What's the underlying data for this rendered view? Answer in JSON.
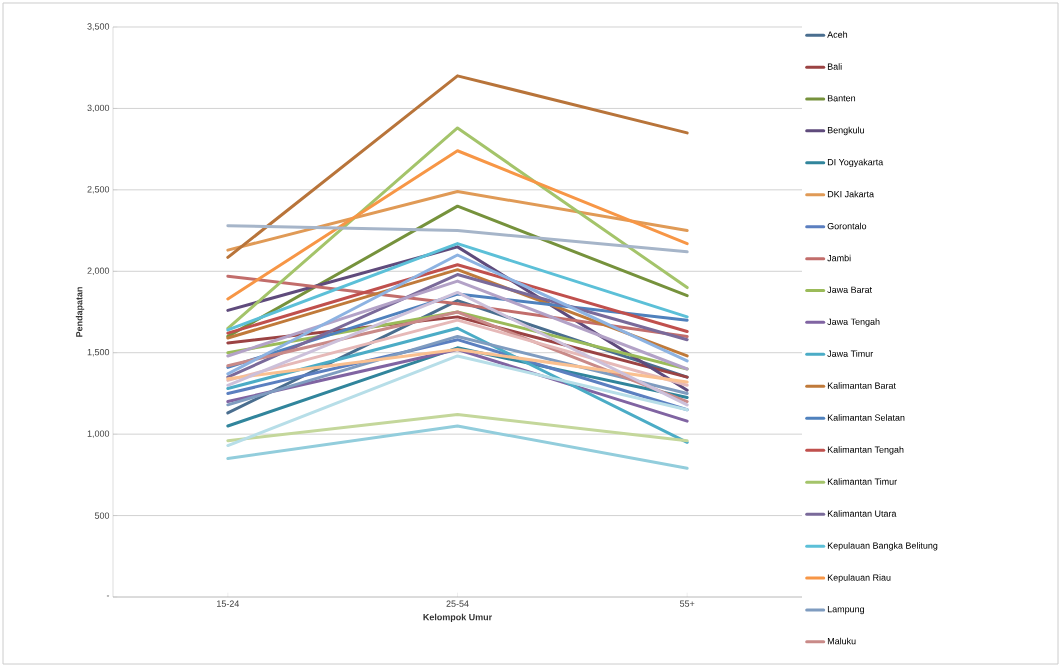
{
  "chart_data": {
    "type": "line",
    "xlabel": "Kelompok Umur",
    "ylabel": "Pendapatan",
    "categories": [
      "15-24",
      "25-54",
      "55+"
    ],
    "ylim": [
      0,
      3500
    ],
    "yticks": [
      {
        "value": 0,
        "label": "-"
      },
      {
        "value": 500,
        "label": "500"
      },
      {
        "value": 1000,
        "label": "1,000"
      },
      {
        "value": 1500,
        "label": "1,500"
      },
      {
        "value": 2000,
        "label": "2,000"
      },
      {
        "value": 2500,
        "label": "2,500"
      },
      {
        "value": 3000,
        "label": "3,000"
      },
      {
        "value": 3500,
        "label": "3,500"
      }
    ],
    "grid": "y",
    "legend": "right",
    "marker": "none",
    "line_style": "solid",
    "series": [
      {
        "name": "Aceh",
        "color": "#4a6e8f",
        "values": [
          1130,
          1820,
          1350
        ]
      },
      {
        "name": "Bali",
        "color": "#9b4343",
        "values": [
          1560,
          1720,
          1350
        ]
      },
      {
        "name": "Banten",
        "color": "#76923c",
        "values": [
          1600,
          2400,
          1850
        ]
      },
      {
        "name": "Bengkulu",
        "color": "#5f4b7c",
        "values": [
          1760,
          2150,
          1270
        ]
      },
      {
        "name": "DI Yogyakarta",
        "color": "#31859c",
        "values": [
          1050,
          1530,
          1225
        ]
      },
      {
        "name": "DKI Jakarta",
        "color": "#e09a56",
        "values": [
          2130,
          2490,
          2250
        ]
      },
      {
        "name": "Gorontalo",
        "color": "#5b7fc0",
        "values": [
          1250,
          1580,
          1150
        ]
      },
      {
        "name": "Jambi",
        "color": "#c26d6b",
        "values": [
          1970,
          1800,
          1600
        ]
      },
      {
        "name": "Jawa Barat",
        "color": "#9bbb59",
        "values": [
          1500,
          1750,
          1400
        ]
      },
      {
        "name": "Jawa Tengah",
        "color": "#8064a2",
        "values": [
          1200,
          1520,
          1080
        ]
      },
      {
        "name": "Jawa Timur",
        "color": "#4bacc6",
        "values": [
          1280,
          1650,
          950
        ]
      },
      {
        "name": "Kalimantan Barat",
        "color": "#c07a3a",
        "values": [
          1590,
          2010,
          1480
        ]
      },
      {
        "name": "Kalimantan Selatan",
        "color": "#4f81bd",
        "values": [
          1410,
          1860,
          1700
        ]
      },
      {
        "name": "Kalimantan Tengah",
        "color": "#c0504d",
        "values": [
          1620,
          2040,
          1630
        ]
      },
      {
        "name": "Kalimantan Timur",
        "color": "#a4c46a",
        "values": [
          1650,
          2880,
          1900
        ]
      },
      {
        "name": "Kalimantan Utara",
        "color": "#7a6a9a",
        "values": [
          1350,
          1980,
          1580
        ]
      },
      {
        "name": "Kepulauan Bangka Belitung",
        "color": "#5cc0d8",
        "values": [
          1640,
          2170,
          1720
        ]
      },
      {
        "name": "Kepulauan Riau",
        "color": "#f79646",
        "values": [
          1830,
          2740,
          2170
        ]
      },
      {
        "name": "Lampung",
        "color": "#7f9cc0",
        "values": [
          1180,
          1600,
          1250
        ]
      },
      {
        "name": "Maluku",
        "color": "#c98a88",
        "values": [
          1420,
          1750,
          1200
        ]
      },
      {
        "color": "#b8743a",
        "values": [
          2085,
          3200,
          2850
        ]
      },
      {
        "color": "#a6b5c9",
        "values": [
          2280,
          2250,
          2120
        ]
      },
      {
        "color": "#92cddc",
        "values": [
          850,
          1050,
          790
        ]
      },
      {
        "color": "#c4d79b",
        "values": [
          960,
          1120,
          960
        ]
      },
      {
        "color": "#b7dee8",
        "values": [
          930,
          1480,
          1150
        ]
      },
      {
        "color": "#e6b9b8",
        "values": [
          1330,
          1700,
          1300
        ]
      },
      {
        "color": "#b3a2c7",
        "values": [
          1480,
          1940,
          1400
        ]
      },
      {
        "color": "#fac090",
        "values": [
          1340,
          1520,
          1320
        ]
      },
      {
        "color": "#8db3e2",
        "values": [
          1370,
          2100,
          1450
        ]
      },
      {
        "color": "#ccc0da",
        "values": [
          1300,
          1870,
          1180
        ]
      }
    ]
  }
}
